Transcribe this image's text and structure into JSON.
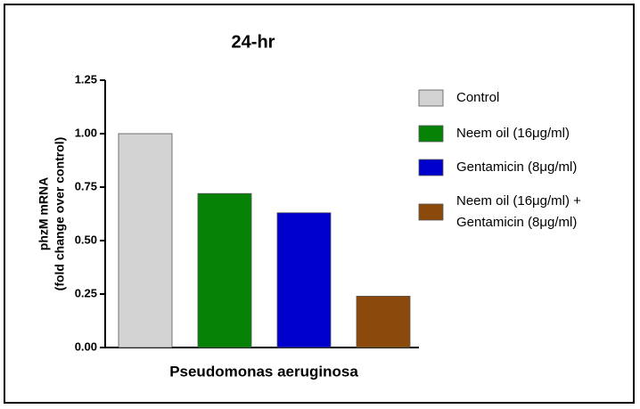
{
  "chart_data": {
    "type": "bar",
    "title": "24-hr",
    "y_label": [
      "phzM mRNA",
      "(fold change over control)"
    ],
    "categories": [
      "Pseudomonas aeruginosa"
    ],
    "series": [
      {
        "name": "Control",
        "color": "#d3d3d3",
        "values": [
          1.0
        ]
      },
      {
        "name": "Neem oil (16μg/ml)",
        "color": "#068206",
        "values": [
          0.72
        ]
      },
      {
        "name": "Gentamicin (8μg/ml)",
        "color": "#0000cc",
        "values": [
          0.63
        ]
      },
      {
        "name": "Neem oil (16μg/ml) + Gentamicin (8μg/ml)",
        "color": "#8b4a0c",
        "values": [
          0.24
        ]
      }
    ],
    "ylim": [
      0,
      1.25
    ],
    "yticks": [
      {
        "value": 0,
        "label": "0.00"
      },
      {
        "value": 0.25,
        "label": "0.25"
      },
      {
        "value": 0.5,
        "label": "0.50"
      },
      {
        "value": 0.75,
        "label": "0.75"
      },
      {
        "value": 1,
        "label": "1.00"
      },
      {
        "value": 1.25,
        "label": "1.25"
      }
    ],
    "legend": "right"
  }
}
